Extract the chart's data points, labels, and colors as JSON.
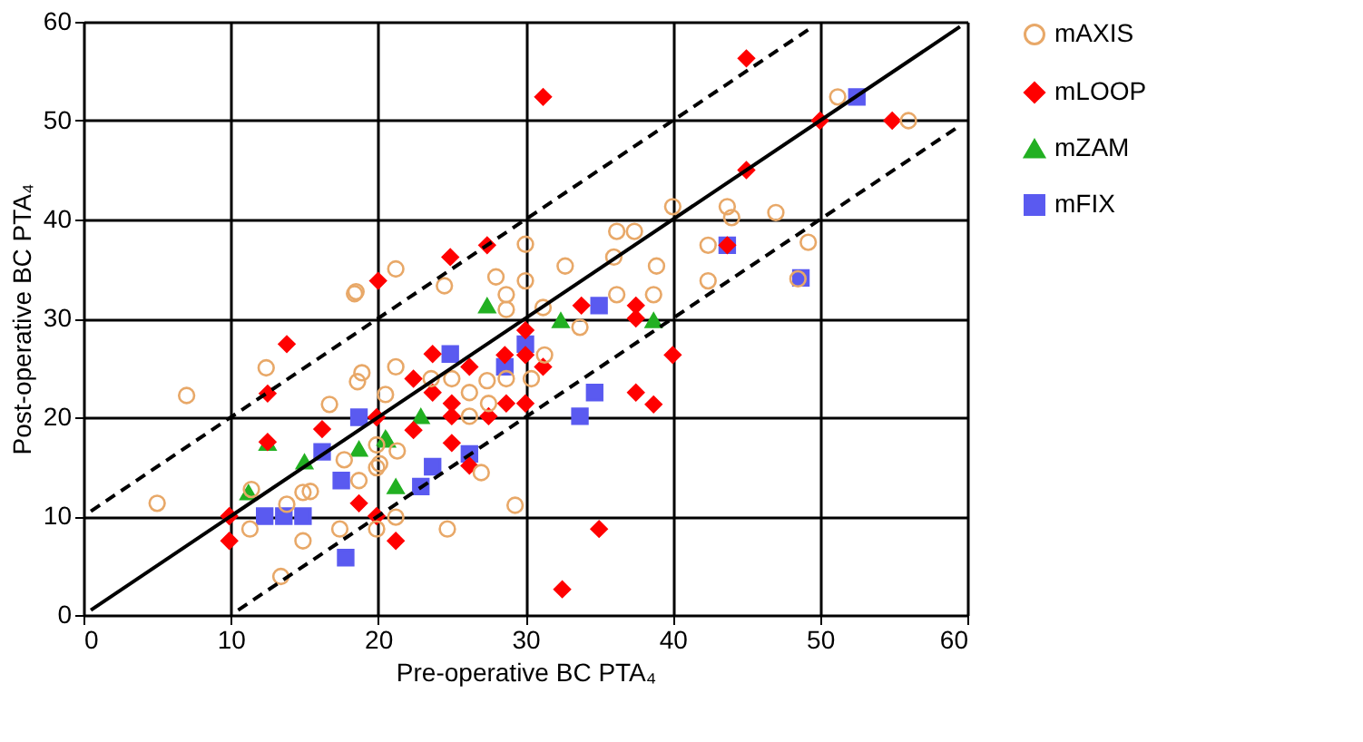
{
  "chart_data": {
    "type": "scatter",
    "xlabel": "Pre-operative BC PTA₄",
    "ylabel": "Post-operative BC PTA₄",
    "xlim": [
      0,
      60
    ],
    "ylim": [
      0,
      60
    ],
    "xticks": [
      0,
      10,
      20,
      30,
      40,
      50,
      60
    ],
    "yticks": [
      0,
      10,
      20,
      30,
      40,
      50,
      60
    ],
    "grid": true,
    "legend": "right",
    "series": [
      {
        "name": "mAXIS",
        "color": "#e8a868",
        "marker": "circle",
        "x": [
          7.0,
          5.0,
          12.4,
          16.7,
          18.9,
          18.6,
          11.4,
          13.8,
          14.9,
          15.4,
          11.3,
          14.9,
          13.4,
          17.4,
          18.7,
          19.9,
          19.9,
          17.7,
          19.9,
          18.4,
          21.2,
          27.4,
          26.2,
          27.5,
          26.2,
          21.3,
          27.0,
          29.3,
          24.7,
          21.2,
          31.3,
          33.7,
          36.2,
          38.7,
          28.7,
          31.2,
          23.6,
          28.7,
          30.4,
          20.5,
          25.0,
          20.1,
          51.2,
          56.0,
          40.0,
          43.7,
          44.0,
          47.0,
          42.4,
          49.2,
          42.4,
          48.5,
          36.2,
          37.4,
          36.0,
          38.9,
          32.7,
          30.0,
          30.0,
          28.0,
          28.7,
          24.5,
          21.2,
          18.5
        ],
        "values": [
          22.2,
          11.3,
          25.0,
          21.3,
          24.5,
          23.6,
          12.7,
          11.2,
          12.4,
          12.5,
          8.7,
          7.5,
          3.9,
          8.7,
          13.6,
          14.9,
          8.7,
          15.7,
          17.2,
          32.5,
          25.1,
          23.7,
          22.5,
          21.4,
          20.1,
          16.6,
          14.4,
          11.1,
          8.7,
          9.9,
          26.3,
          29.1,
          32.4,
          32.4,
          30.9,
          31.1,
          23.9,
          23.9,
          23.9,
          22.3,
          23.9,
          15.3,
          52.4,
          50.0,
          41.3,
          41.3,
          40.2,
          40.7,
          37.4,
          37.7,
          33.8,
          34.0,
          38.8,
          38.8,
          36.2,
          35.3,
          35.3,
          37.5,
          33.8,
          34.2,
          32.4,
          33.3,
          35.0,
          32.7
        ]
      },
      {
        "name": "mLOOP",
        "color": "#ff0000",
        "marker": "diamond",
        "x": [
          13.8,
          12.5,
          16.2,
          12.5,
          9.9,
          9.9,
          19.9,
          18.7,
          19.9,
          33.8,
          37.5,
          37.5,
          40.0,
          30.0,
          30.0,
          23.7,
          28.6,
          26.2,
          31.2,
          22.4,
          23.7,
          25.0,
          28.7,
          30.0,
          37.5,
          38.7,
          25.0,
          27.5,
          22.4,
          25.0,
          26.2,
          21.2,
          35.0,
          32.5,
          31.2,
          45.0,
          50.0,
          54.9,
          45.0,
          43.7,
          24.9,
          27.4,
          20.0
        ],
        "values": [
          27.4,
          22.4,
          18.8,
          17.5,
          10.0,
          7.5,
          20.0,
          11.3,
          10.0,
          31.3,
          31.3,
          30.0,
          26.3,
          28.8,
          26.3,
          26.4,
          26.3,
          25.1,
          25.1,
          23.9,
          22.5,
          21.4,
          21.4,
          21.4,
          22.5,
          21.3,
          20.1,
          20.1,
          18.7,
          17.4,
          15.1,
          7.5,
          8.7,
          2.6,
          52.4,
          56.3,
          50.0,
          50.0,
          45.0,
          37.4,
          36.2,
          37.4,
          33.8
        ]
      },
      {
        "name": "mZAM",
        "color": "#22b022",
        "marker": "triangle",
        "x": [
          12.5,
          15.0,
          18.7,
          11.2,
          20.6,
          27.4,
          32.4,
          38.7,
          22.9,
          20.5,
          21.2
        ],
        "values": [
          17.4,
          15.5,
          16.8,
          12.4,
          17.7,
          31.3,
          29.8,
          29.8,
          20.1,
          17.9,
          13.0
        ]
      },
      {
        "name": "mFIX",
        "color": "#5a5af0",
        "marker": "square",
        "x": [
          18.7,
          16.2,
          17.5,
          12.3,
          13.6,
          14.9,
          17.8,
          35.0,
          30.0,
          24.9,
          28.6,
          34.7,
          33.7,
          26.2,
          23.7,
          22.9,
          52.5,
          43.7,
          48.7
        ],
        "values": [
          20.0,
          16.5,
          13.6,
          10.0,
          10.0,
          10.0,
          5.8,
          31.3,
          27.4,
          26.4,
          25.1,
          22.5,
          20.1,
          16.3,
          15.0,
          13.0,
          52.4,
          37.4,
          34.1
        ]
      },
      {
        "type": "line",
        "color": "#000000",
        "line_style": "solid",
        "x": [
          0.5,
          59.5
        ],
        "values": [
          0.5,
          59.5
        ]
      },
      {
        "type": "line",
        "color": "#000000",
        "line_style": "dashed",
        "x": [
          0.5,
          49.5
        ],
        "values": [
          10.5,
          59.5
        ]
      },
      {
        "type": "line",
        "color": "#000000",
        "line_style": "dashed",
        "x": [
          10.5,
          59.5
        ],
        "values": [
          0.5,
          49.5
        ]
      }
    ]
  }
}
